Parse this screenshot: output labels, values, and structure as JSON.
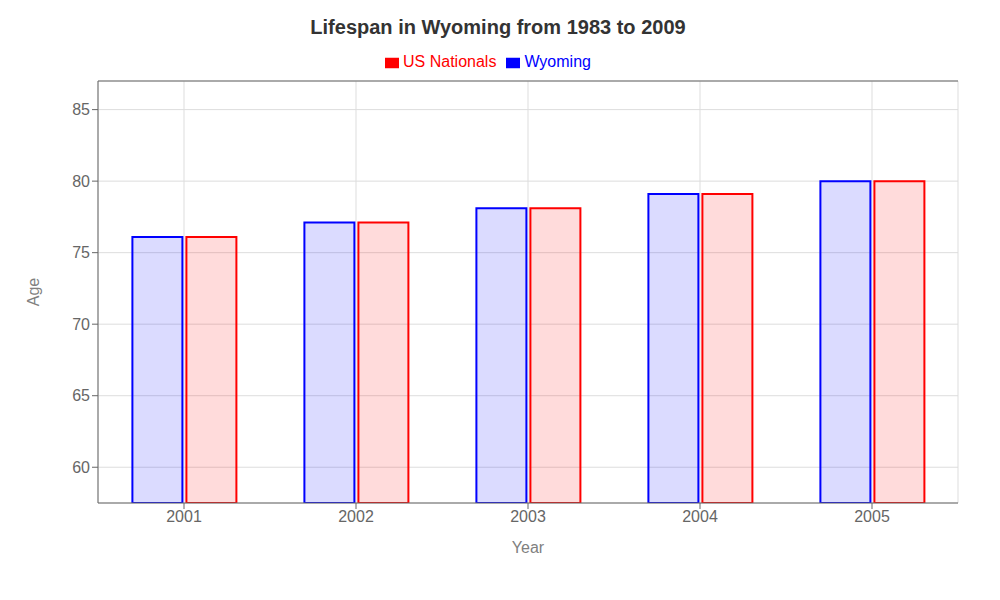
{
  "chart_data": {
    "type": "bar",
    "title": "Lifespan in Wyoming from 1983 to 2009",
    "x_label": "Year",
    "y_label": "Age",
    "categories": [
      "2001",
      "2002",
      "2003",
      "2004",
      "2005"
    ],
    "series": [
      {
        "name": "Wyoming",
        "color": "#0000ff",
        "values": [
          76.1,
          77.1,
          78.1,
          79.1,
          80.0
        ]
      },
      {
        "name": "US Nationals",
        "color": "#ff0000",
        "values": [
          76.1,
          77.1,
          78.1,
          79.1,
          80.0
        ]
      }
    ],
    "ylim": [
      57.5,
      87
    ],
    "yticks": [
      60,
      65,
      70,
      75,
      80,
      85
    ],
    "grid": true,
    "legend": "top"
  }
}
